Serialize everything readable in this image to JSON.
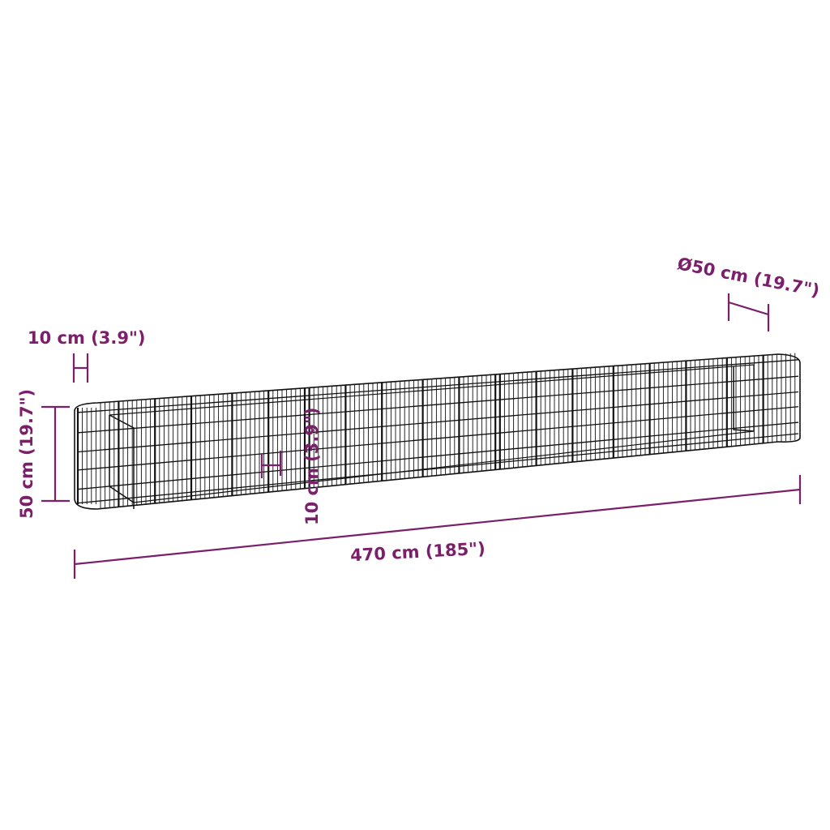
{
  "colors": {
    "dimension": "#7b1f6a",
    "mesh": "#111111",
    "background": "#ffffff"
  },
  "labels": {
    "wire_spacing": "10 cm (3.9\")",
    "height": "50 cm (19.7\")",
    "inner_spacing": "10 cm (3.9\")",
    "length": "470 cm (185\")",
    "diameter": "Ø50 cm (19.7\")"
  }
}
